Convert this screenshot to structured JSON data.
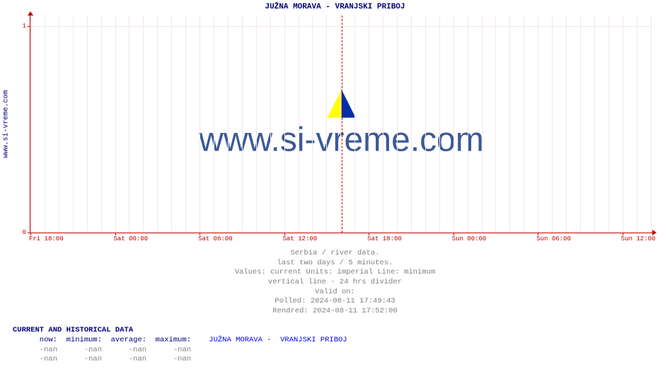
{
  "chart": {
    "title": "JUŽNA MORAVA -  VRANJSKI PRIBOJ",
    "y_axis_label": "www.si-vreme.com",
    "watermark_text": "www.si-vreme.com",
    "type": "line",
    "background_color": "#ffffff",
    "axis_color": "#c00000",
    "grid_color": "#f2e6e6",
    "title_color": "#000080",
    "tick_label_color": "#c00000",
    "tick_label_fontsize": 9,
    "x_ticks": [
      {
        "pos_pct": 0.0,
        "label": "Fri 18:00"
      },
      {
        "pos_pct": 13.6,
        "label": "Sat 00:00"
      },
      {
        "pos_pct": 27.2,
        "label": "Sat 06:00"
      },
      {
        "pos_pct": 40.8,
        "label": "Sat 12:00"
      },
      {
        "pos_pct": 54.4,
        "label": "Sat 18:00"
      },
      {
        "pos_pct": 68.0,
        "label": "Sun 00:00"
      },
      {
        "pos_pct": 81.6,
        "label": "Sun 06:00"
      },
      {
        "pos_pct": 95.2,
        "label": "Sun 12:00"
      }
    ],
    "x_minor_per_major": 5,
    "y_ticks": [
      {
        "pos_pct": 100,
        "label": "0"
      },
      {
        "pos_pct": 5,
        "label": "1"
      }
    ],
    "divider_pos_pct": 50.0,
    "watermark_font_color": "#3b5998",
    "watermark_fontsize": 48
  },
  "caption": {
    "line1": "Serbia / river data.",
    "line2": "last two days / 5 minutes.",
    "line3": "Values: current  Units: imperial  Line: minimum",
    "line4": "vertical line - 24 hrs  divider",
    "line5": "Valid on:",
    "line6": "Polled: 2024-08-11 17:49:43",
    "line7": "Rendred: 2024-08-11 17:52:00",
    "text_color": "#808080"
  },
  "data_table": {
    "header": "CURRENT AND HISTORICAL DATA",
    "columns": [
      "now:",
      "minimum:",
      "average:",
      "maximum:"
    ],
    "series_name": "JUŽNA MORAVA -  VRANJSKI PRIBOJ",
    "rows": [
      [
        "-nan",
        "-nan",
        "-nan",
        "-nan"
      ],
      [
        "-nan",
        "-nan",
        "-nan",
        "-nan"
      ]
    ],
    "header_color": "#000080",
    "label_color": "#000080",
    "value_color": "#808080",
    "series_color": "#0000ff"
  }
}
